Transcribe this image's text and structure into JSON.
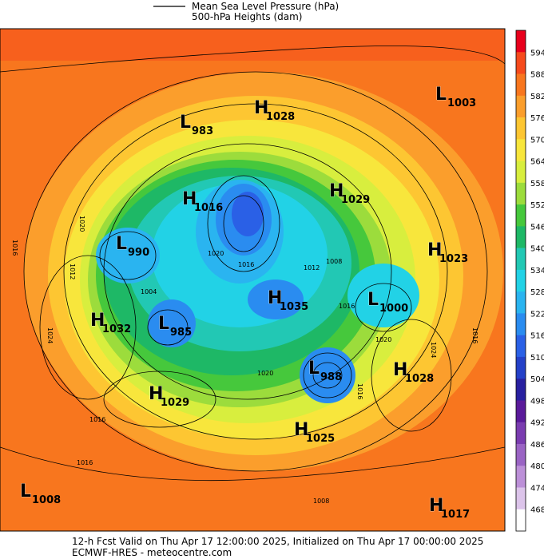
{
  "header": {
    "legend": [
      "Mean Sea Level Pressure (hPa)",
      "500-hPa Heights (dam)"
    ]
  },
  "map": {
    "centers": [
      {
        "kind": "L",
        "value": "1003"
      },
      {
        "kind": "H",
        "value": "1028"
      },
      {
        "kind": "L",
        "value": "983"
      },
      {
        "kind": "H",
        "value": "1029"
      },
      {
        "kind": "H",
        "value": "1016"
      },
      {
        "kind": "L",
        "value": "990"
      },
      {
        "kind": "H",
        "value": "1023"
      },
      {
        "kind": "H",
        "value": "1035"
      },
      {
        "kind": "L",
        "value": "1000"
      },
      {
        "kind": "H",
        "value": "1032"
      },
      {
        "kind": "L",
        "value": "985"
      },
      {
        "kind": "L",
        "value": "988"
      },
      {
        "kind": "H",
        "value": "1028"
      },
      {
        "kind": "H",
        "value": "1029"
      },
      {
        "kind": "H",
        "value": "1025"
      },
      {
        "kind": "L",
        "value": "1008"
      },
      {
        "kind": "H",
        "value": "1017"
      }
    ],
    "contour_labels": [
      "1016",
      "1020",
      "1012",
      "1004",
      "1024",
      "1020",
      "1016",
      "1008",
      "1012",
      "1016",
      "1024",
      "1016",
      "1020",
      "1016",
      "1016",
      "1016",
      "1020",
      "1008"
    ]
  },
  "colorbar": {
    "ticks": [
      594,
      588,
      582,
      576,
      570,
      564,
      558,
      552,
      546,
      540,
      534,
      528,
      522,
      516,
      510,
      504,
      498,
      492,
      486,
      480,
      474,
      468
    ],
    "colors": [
      "#e8001c",
      "#f64a1c",
      "#f8761e",
      "#fb9e2c",
      "#fdc632",
      "#f8e63c",
      "#d8ee3e",
      "#9cdc3c",
      "#46c83c",
      "#1eb866",
      "#22c8b4",
      "#22d2e6",
      "#2ab4f0",
      "#2a8cf0",
      "#2a60e6",
      "#2440c8",
      "#2820a0",
      "#5a1a9a",
      "#7a3cb0",
      "#9a64c4",
      "#bc90d8",
      "#dcc4ea",
      "#ffffff"
    ]
  },
  "footer": {
    "line1": "12-h Fcst Valid on Thu Apr 17 12:00:00 2025, Initialized on Thu Apr 17 00:00:00 2025",
    "line2": "ECMWF-HRES  - meteocentre.com"
  }
}
